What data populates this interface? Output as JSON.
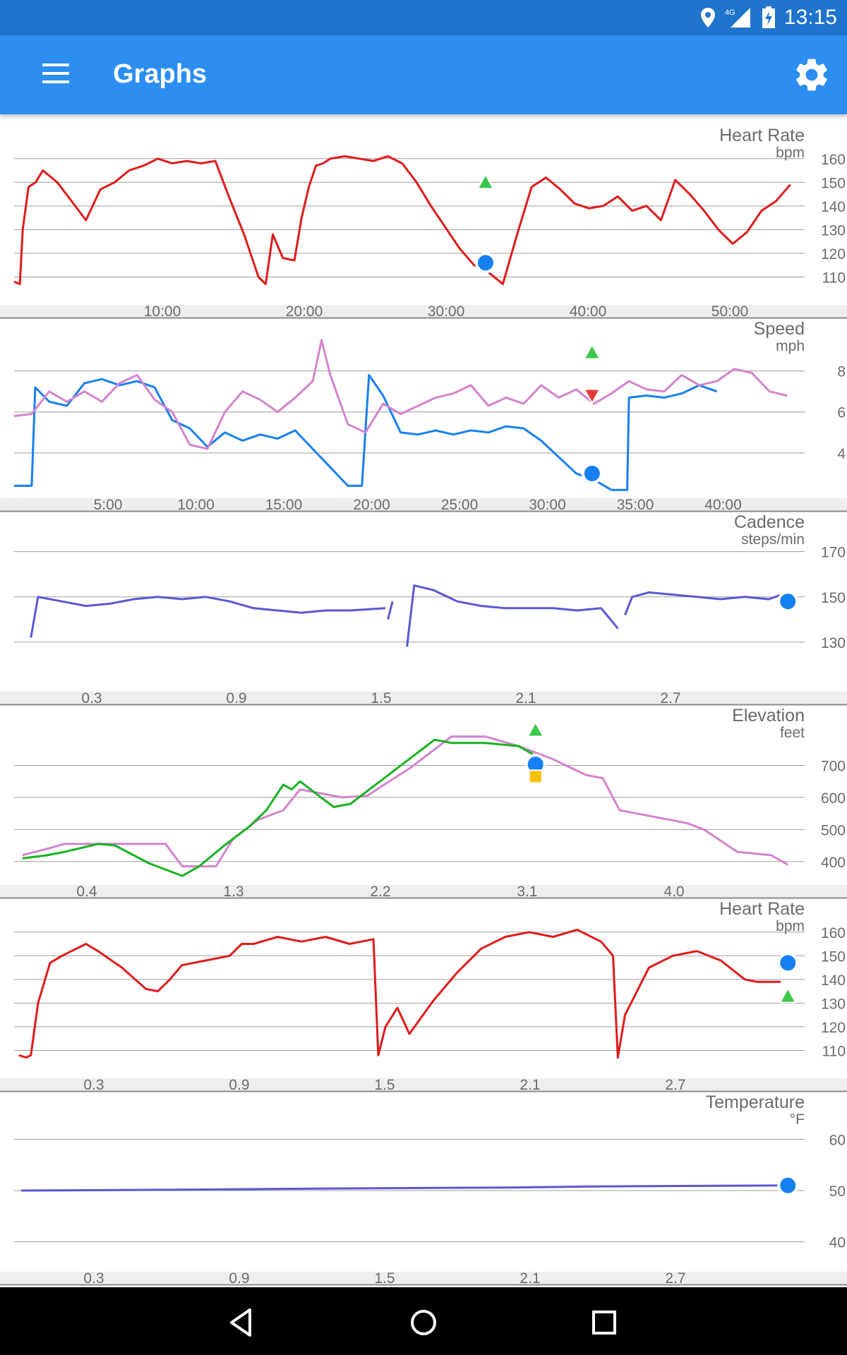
{
  "status": {
    "time": "13:15",
    "network": "4G",
    "icons": [
      "location-icon",
      "signal-icon",
      "battery-charging-icon"
    ]
  },
  "app": {
    "title": "Graphs",
    "accent": "#2b8ef0",
    "status_bar_color": "#1f74cc"
  },
  "toolbar": {
    "menu_icon": "menu-icon",
    "settings_icon": "settings-gear-icon"
  },
  "nav": {
    "icons": [
      "back-icon",
      "home-icon",
      "recents-icon"
    ]
  },
  "chart_data": [
    {
      "id": "hr-time",
      "type": "line",
      "title": "Heart Rate",
      "unit": "bpm",
      "x_ticks": [
        "10:00",
        "20:00",
        "30:00",
        "40:00",
        "50:00"
      ],
      "xlim_min": [
        0,
        55
      ],
      "y_ticks": [
        110,
        120,
        130,
        140,
        150,
        160
      ],
      "ylim": [
        100,
        165
      ],
      "series": [
        {
          "color": "#e01b1b",
          "x": [
            0,
            0.4,
            0.6,
            1,
            1.5,
            2,
            3,
            4,
            5,
            6,
            7,
            8,
            9,
            10,
            11,
            12,
            13,
            14,
            15,
            16,
            17,
            17.5,
            18,
            18.7,
            19.5,
            20,
            20.5,
            21,
            21.5,
            22,
            23,
            24,
            25,
            26,
            27,
            28,
            29,
            30,
            31,
            32,
            33,
            34,
            35,
            36,
            37,
            38,
            39,
            40,
            41,
            42,
            43,
            44,
            45,
            46,
            47,
            48,
            49,
            50,
            51,
            52,
            53,
            54
          ],
          "y": [
            108,
            107,
            130,
            148,
            150,
            155,
            150,
            142,
            134,
            147,
            150,
            155,
            157,
            160,
            158,
            159,
            158,
            159,
            143,
            128,
            110,
            107,
            128,
            118,
            117,
            135,
            148,
            157,
            158,
            160,
            161,
            160,
            159,
            161,
            158,
            150,
            140,
            131,
            122,
            115,
            112,
            107,
            128,
            148,
            152,
            147,
            141,
            139,
            140,
            144,
            138,
            140,
            134,
            151,
            145,
            138,
            130,
            124,
            129,
            138,
            142,
            149
          ]
        }
      ],
      "markers": [
        {
          "kind": "cursor-dot",
          "x": 32.8,
          "y": 116
        },
        {
          "kind": "up-triangle",
          "x": 32.8,
          "y": 150
        }
      ]
    },
    {
      "id": "speed-time",
      "type": "line",
      "title": "Speed",
      "unit": "mph",
      "x_ticks": [
        "5:00",
        "10:00",
        "15:00",
        "20:00",
        "25:00",
        "30:00",
        "35:00",
        "40:00"
      ],
      "xlim_min": [
        0,
        45
      ],
      "y_ticks": [
        4,
        6,
        8
      ],
      "ylim": [
        2,
        9.5
      ],
      "series": [
        {
          "color": "#1780f0",
          "x": [
            0,
            1,
            1.2,
            2,
            3,
            4,
            5,
            6,
            7,
            8,
            9,
            10,
            11,
            12,
            13,
            14,
            15,
            16,
            17,
            18,
            19,
            19.8,
            20.2,
            21,
            22,
            23,
            24,
            25,
            26,
            27,
            28,
            29,
            30,
            31,
            32,
            33,
            34,
            34.9,
            35,
            36,
            37,
            38,
            39,
            40
          ],
          "y": [
            2.4,
            2.4,
            7.2,
            6.5,
            6.3,
            7.4,
            7.6,
            7.3,
            7.5,
            7.2,
            5.6,
            5.2,
            4.3,
            5.0,
            4.6,
            4.9,
            4.7,
            5.1,
            4.2,
            3.3,
            2.4,
            2.4,
            7.8,
            6.8,
            5.0,
            4.9,
            5.1,
            4.9,
            5.1,
            5.0,
            5.3,
            5.2,
            4.6,
            3.8,
            3.0,
            2.7,
            2.2,
            2.2,
            6.7,
            6.8,
            6.7,
            6.9,
            7.3,
            7.0
          ]
        },
        {
          "color": "#d383cf",
          "x": [
            0,
            1,
            2,
            3,
            4,
            5,
            6,
            7,
            8,
            9,
            10,
            11,
            12,
            13,
            14,
            15,
            16,
            17,
            17.5,
            18,
            19,
            20,
            21,
            22,
            23,
            24,
            25,
            26,
            27,
            28,
            29,
            30,
            31,
            32,
            33,
            34,
            35,
            36,
            37,
            38,
            39,
            40,
            41,
            42,
            43,
            44
          ],
          "y": [
            5.8,
            5.9,
            7.0,
            6.5,
            7.0,
            6.5,
            7.4,
            7.8,
            6.6,
            6.0,
            4.4,
            4.2,
            6.0,
            7.0,
            6.6,
            6.0,
            6.7,
            7.5,
            9.5,
            7.8,
            5.4,
            5.0,
            6.4,
            5.9,
            6.3,
            6.7,
            6.9,
            7.3,
            6.3,
            6.7,
            6.4,
            7.3,
            6.7,
            7.1,
            6.4,
            6.9,
            7.5,
            7.1,
            7.0,
            7.8,
            7.3,
            7.5,
            8.1,
            7.9,
            7.0,
            6.8
          ]
        }
      ],
      "markers": [
        {
          "kind": "cursor-dot",
          "x": 32.9,
          "y": 3.0
        },
        {
          "kind": "up-triangle",
          "x": 32.9,
          "y": 8.9
        },
        {
          "kind": "down-triangle",
          "x": 32.9,
          "y": 6.8
        }
      ]
    },
    {
      "id": "cadence-dist",
      "type": "line",
      "title": "Cadence",
      "unit": "steps/min",
      "x_ticks": [
        "0.3",
        "0.9",
        "1.5",
        "2.1",
        "2.7"
      ],
      "xlim": [
        0,
        3.3
      ],
      "y_ticks": [
        130,
        150,
        170
      ],
      "ylim": [
        110,
        178
      ],
      "series": [
        {
          "color": "#5b57d4",
          "segments": [
            {
              "x": [
                0.07,
                0.1,
                0.2,
                0.3,
                0.4,
                0.5,
                0.6,
                0.7,
                0.8,
                0.9,
                1.0,
                1.1,
                1.2,
                1.3,
                1.4,
                1.55
              ],
              "y": [
                132,
                150,
                148,
                146,
                147,
                149,
                150,
                149,
                150,
                148,
                145,
                144,
                143,
                144,
                144,
                145
              ]
            },
            {
              "x": [
                1.56,
                1.58
              ],
              "y": [
                140,
                148
              ]
            },
            {
              "x": [
                1.64,
                1.67,
                1.75,
                1.85,
                1.95,
                2.05,
                2.15,
                2.25,
                2.35,
                2.45,
                2.49,
                2.52
              ],
              "y": [
                128,
                155,
                153,
                148,
                146,
                145,
                145,
                145,
                144,
                145,
                140,
                136
              ]
            },
            {
              "x": [
                2.55,
                2.58,
                2.65,
                2.75,
                2.85,
                2.95,
                3.05,
                3.15,
                3.23
              ],
              "y": [
                142,
                150,
                152,
                151,
                150,
                149,
                150,
                149,
                152
              ]
            }
          ]
        }
      ],
      "markers": [
        {
          "kind": "cursor-dot",
          "x": 3.23,
          "y": 148
        }
      ]
    },
    {
      "id": "elevation-dist",
      "type": "line",
      "title": "Elevation",
      "unit": "feet",
      "x_ticks": [
        "0.4",
        "1.3",
        "2.2",
        "3.1",
        "4.0"
      ],
      "xlim": [
        0,
        4.7
      ],
      "y_ticks": [
        400,
        500,
        600,
        700
      ],
      "ylim": [
        340,
        820
      ],
      "series": [
        {
          "color": "#d383cf",
          "x": [
            0.05,
            0.2,
            0.3,
            0.6,
            0.9,
            1.0,
            1.2,
            1.3,
            1.45,
            1.6,
            1.7,
            1.95,
            2.1,
            2.2,
            2.35,
            2.5,
            2.6,
            2.8,
            3.0,
            3.2,
            3.4,
            3.5,
            3.6,
            3.8,
            4.0,
            4.1,
            4.3,
            4.5,
            4.6
          ],
          "y": [
            420,
            440,
            455,
            455,
            455,
            385,
            385,
            470,
            530,
            560,
            625,
            600,
            605,
            640,
            690,
            750,
            790,
            790,
            760,
            720,
            670,
            660,
            560,
            540,
            520,
            500,
            430,
            420,
            390
          ]
        },
        {
          "color": "#17b320",
          "x": [
            0.05,
            0.2,
            0.3,
            0.5,
            0.6,
            0.8,
            1.0,
            1.1,
            1.25,
            1.4,
            1.5,
            1.6,
            1.65,
            1.7,
            1.8,
            1.9,
            2.0,
            2.1,
            2.2,
            2.4,
            2.5,
            2.6,
            2.8,
            3.0,
            3.1
          ],
          "y": [
            410,
            420,
            430,
            455,
            450,
            395,
            355,
            385,
            450,
            510,
            560,
            640,
            625,
            650,
            610,
            570,
            580,
            620,
            660,
            740,
            780,
            770,
            770,
            760,
            730
          ]
        }
      ],
      "markers": [
        {
          "kind": "cursor-dot",
          "x": 3.1,
          "y": 703
        },
        {
          "kind": "up-triangle",
          "x": 3.1,
          "y": 810
        },
        {
          "kind": "yellow-square",
          "x": 3.1,
          "y": 665
        }
      ]
    },
    {
      "id": "hr-dist",
      "type": "line",
      "title": "Heart Rate",
      "unit": "bpm",
      "x_ticks": [
        "0.3",
        "0.9",
        "1.5",
        "2.1",
        "2.7"
      ],
      "xlim": [
        0,
        3.3
      ],
      "y_ticks": [
        110,
        120,
        130,
        140,
        150,
        160
      ],
      "ylim": [
        100,
        165
      ],
      "series": [
        {
          "color": "#e01b1b",
          "x": [
            0.02,
            0.05,
            0.07,
            0.1,
            0.15,
            0.2,
            0.3,
            0.35,
            0.45,
            0.55,
            0.6,
            0.65,
            0.7,
            0.8,
            0.9,
            0.95,
            1.0,
            1.1,
            1.2,
            1.3,
            1.4,
            1.5,
            1.52,
            1.55,
            1.6,
            1.65,
            1.75,
            1.85,
            1.95,
            2.05,
            2.15,
            2.25,
            2.35,
            2.45,
            2.5,
            2.52,
            2.55,
            2.65,
            2.75,
            2.85,
            2.95,
            3.05,
            3.1,
            3.2
          ],
          "y": [
            108,
            107,
            108,
            130,
            147,
            150,
            155,
            152,
            145,
            136,
            135,
            140,
            146,
            148,
            150,
            155,
            155,
            158,
            156,
            158,
            155,
            157,
            108,
            120,
            128,
            117,
            131,
            143,
            153,
            158,
            160,
            158,
            161,
            156,
            150,
            107,
            125,
            145,
            150,
            152,
            148,
            140,
            139,
            139
          ]
        }
      ],
      "markers": [
        {
          "kind": "cursor-dot",
          "x": 3.23,
          "y": 147
        },
        {
          "kind": "up-triangle",
          "x": 3.23,
          "y": 133
        }
      ]
    },
    {
      "id": "temperature-dist",
      "type": "line",
      "title": "Temperature",
      "unit": "°F",
      "x_ticks": [
        "0.3",
        "0.9",
        "1.5",
        "2.1",
        "2.7"
      ],
      "xlim": [
        0,
        3.3
      ],
      "y_ticks": [
        40,
        50,
        60
      ],
      "ylim": [
        35,
        65
      ],
      "series": [
        {
          "color": "#5b57d4",
          "x": [
            0.03,
            0.8,
            1.3,
            2.1,
            2.4,
            3.23
          ],
          "y": [
            50,
            50.2,
            50.4,
            50.6,
            50.8,
            51
          ]
        }
      ],
      "markers": [
        {
          "kind": "cursor-dot",
          "x": 3.23,
          "y": 51
        }
      ]
    }
  ]
}
